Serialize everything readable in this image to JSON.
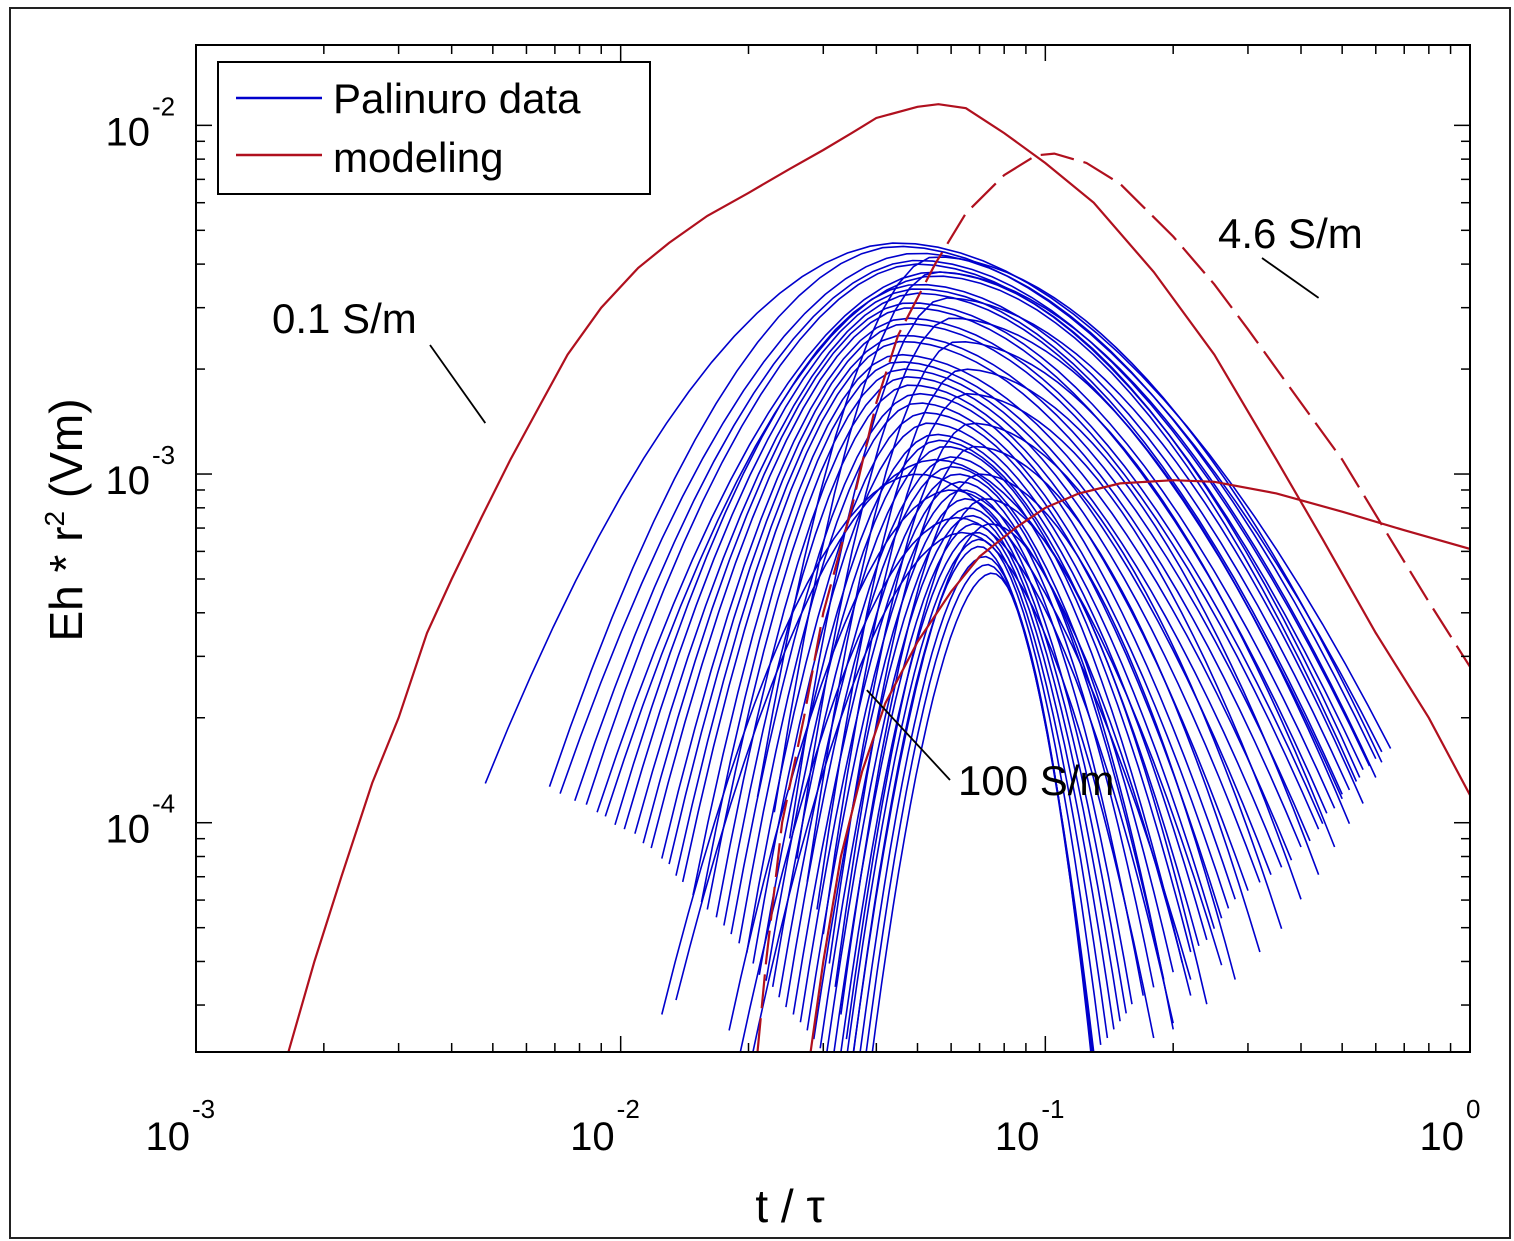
{
  "chart_data": {
    "type": "line",
    "xscale": "log",
    "yscale": "log",
    "xlim": [
      0.001,
      1
    ],
    "ylim": [
      2.2e-05,
      0.017
    ],
    "xlabel": "t / τ",
    "ylabel_parts": {
      "pre": "Eh * r",
      "exp": "2",
      "post": " (Vm)"
    },
    "x_ticks": [
      {
        "value": 0.001,
        "base": "10",
        "exp": "-3"
      },
      {
        "value": 0.01,
        "base": "10",
        "exp": "-2"
      },
      {
        "value": 0.1,
        "base": "10",
        "exp": "-1"
      },
      {
        "value": 1,
        "base": "10",
        "exp": "0"
      }
    ],
    "y_ticks": [
      {
        "value": 0.01,
        "base": "10",
        "exp": "-2"
      },
      {
        "value": 0.001,
        "base": "10",
        "exp": "-3"
      },
      {
        "value": 0.0001,
        "base": "10",
        "exp": "-4"
      }
    ],
    "legend": {
      "placement": "top-left",
      "entries": [
        {
          "label": "Palinuro data",
          "color": "#0000cc"
        },
        {
          "label": "modeling",
          "color": "#b0101e"
        }
      ]
    },
    "model_series": [
      {
        "name": "0.1 S/m",
        "style": "solid",
        "color": "#b0101e",
        "points": [
          [
            0.00165,
            2.2e-05
          ],
          [
            0.0019,
            4e-05
          ],
          [
            0.0022,
            7e-05
          ],
          [
            0.0026,
            0.00013
          ],
          [
            0.003,
            0.0002
          ],
          [
            0.0035,
            0.00035
          ],
          [
            0.004,
            0.0005
          ],
          [
            0.0047,
            0.00075
          ],
          [
            0.0055,
            0.0011
          ],
          [
            0.0065,
            0.0016
          ],
          [
            0.0075,
            0.0022
          ],
          [
            0.009,
            0.003
          ],
          [
            0.011,
            0.0039
          ],
          [
            0.013,
            0.0046
          ],
          [
            0.016,
            0.0055
          ],
          [
            0.02,
            0.0064
          ],
          [
            0.025,
            0.0075
          ],
          [
            0.03,
            0.0085
          ],
          [
            0.035,
            0.0095
          ],
          [
            0.04,
            0.0105
          ],
          [
            0.05,
            0.0113
          ],
          [
            0.056,
            0.0115
          ],
          [
            0.065,
            0.0112
          ],
          [
            0.08,
            0.0095
          ],
          [
            0.1,
            0.0078
          ],
          [
            0.13,
            0.006
          ],
          [
            0.18,
            0.0038
          ],
          [
            0.25,
            0.0022
          ],
          [
            0.35,
            0.0011
          ],
          [
            0.45,
            0.00065
          ],
          [
            0.6,
            0.00035
          ],
          [
            0.8,
            0.0002
          ],
          [
            1.0,
            0.00012
          ]
        ]
      },
      {
        "name": "4.6 S/m",
        "style": "dashed",
        "color": "#b0101e",
        "points": [
          [
            0.021,
            2.2e-05
          ],
          [
            0.022,
            4e-05
          ],
          [
            0.024,
            0.0001
          ],
          [
            0.027,
            0.0002
          ],
          [
            0.03,
            0.0004
          ],
          [
            0.035,
            0.0008
          ],
          [
            0.04,
            0.0016
          ],
          [
            0.045,
            0.0025
          ],
          [
            0.055,
            0.004
          ],
          [
            0.065,
            0.0056
          ],
          [
            0.08,
            0.0072
          ],
          [
            0.095,
            0.0082
          ],
          [
            0.105,
            0.0083
          ],
          [
            0.125,
            0.0078
          ],
          [
            0.15,
            0.0068
          ],
          [
            0.2,
            0.0048
          ],
          [
            0.25,
            0.0035
          ],
          [
            0.3,
            0.0026
          ],
          [
            0.4,
            0.0016
          ],
          [
            0.5,
            0.0011
          ],
          [
            0.65,
            0.00065
          ],
          [
            0.8,
            0.00043
          ],
          [
            1.0,
            0.00028
          ]
        ]
      },
      {
        "name": "100 S/m",
        "style": "solid",
        "color": "#b0101e",
        "points": [
          [
            0.028,
            2.2e-05
          ],
          [
            0.03,
            4e-05
          ],
          [
            0.033,
            8e-05
          ],
          [
            0.037,
            0.00014
          ],
          [
            0.042,
            0.00022
          ],
          [
            0.05,
            0.00033
          ],
          [
            0.06,
            0.00046
          ],
          [
            0.07,
            0.00058
          ],
          [
            0.085,
            0.0007
          ],
          [
            0.1,
            0.0008
          ],
          [
            0.12,
            0.00088
          ],
          [
            0.15,
            0.00094
          ],
          [
            0.2,
            0.00096
          ],
          [
            0.25,
            0.00095
          ],
          [
            0.35,
            0.00088
          ],
          [
            0.5,
            0.00078
          ],
          [
            0.7,
            0.00069
          ],
          [
            1.0,
            0.00061
          ]
        ]
      }
    ],
    "annotations": [
      {
        "text": "0.1 S/m",
        "target": [
          0.0048,
          0.0014
        ]
      },
      {
        "text": "4.6 S/m",
        "target": [
          0.44,
          0.0032
        ]
      },
      {
        "text": "100 S/m",
        "target": [
          0.038,
          0.00024
        ]
      }
    ],
    "palinuro_data": {
      "name": "Palinuro data",
      "color": "#0000cc",
      "note_values": "individual field curves, each defined by start time, peak time, peak amplitude and end time",
      "curves": [
        [
          0.0048,
          0.045,
          0.0046,
          0.65
        ],
        [
          0.0068,
          0.045,
          0.0045,
          0.62
        ],
        [
          0.0072,
          0.05,
          0.0043,
          0.6
        ],
        [
          0.0078,
          0.05,
          0.0041,
          0.58
        ],
        [
          0.0083,
          0.05,
          0.004,
          0.56
        ],
        [
          0.0088,
          0.055,
          0.0038,
          0.55
        ],
        [
          0.0092,
          0.055,
          0.0037,
          0.54
        ],
        [
          0.0097,
          0.05,
          0.0035,
          0.52
        ],
        [
          0.0102,
          0.05,
          0.0034,
          0.5
        ],
        [
          0.0108,
          0.05,
          0.0033,
          0.5
        ],
        [
          0.0113,
          0.048,
          0.0031,
          0.48
        ],
        [
          0.0118,
          0.048,
          0.003,
          0.46
        ],
        [
          0.0125,
          0.047,
          0.0028,
          0.45
        ],
        [
          0.013,
          0.047,
          0.0027,
          0.44
        ],
        [
          0.0135,
          0.046,
          0.0025,
          0.42
        ],
        [
          0.014,
          0.046,
          0.0024,
          0.4
        ],
        [
          0.0148,
          0.045,
          0.0022,
          0.38
        ],
        [
          0.0155,
          0.045,
          0.0021,
          0.36
        ],
        [
          0.016,
          0.046,
          0.002,
          0.34
        ],
        [
          0.0168,
          0.047,
          0.0019,
          0.32
        ],
        [
          0.0175,
          0.048,
          0.0018,
          0.3
        ],
        [
          0.0182,
          0.05,
          0.0017,
          0.28
        ],
        [
          0.019,
          0.05,
          0.0016,
          0.27
        ],
        [
          0.0198,
          0.052,
          0.0015,
          0.26
        ],
        [
          0.0205,
          0.053,
          0.0014,
          0.25
        ],
        [
          0.0212,
          0.055,
          0.0013,
          0.24
        ],
        [
          0.022,
          0.056,
          0.00125,
          0.23
        ],
        [
          0.0228,
          0.058,
          0.0012,
          0.22
        ],
        [
          0.0236,
          0.06,
          0.00112,
          0.21
        ],
        [
          0.0245,
          0.06,
          0.00105,
          0.2
        ],
        [
          0.0255,
          0.062,
          0.001,
          0.19
        ],
        [
          0.0265,
          0.063,
          0.00095,
          0.18
        ],
        [
          0.0275,
          0.064,
          0.0009,
          0.17
        ],
        [
          0.0285,
          0.065,
          0.00085,
          0.16
        ],
        [
          0.0295,
          0.066,
          0.0008,
          0.155
        ],
        [
          0.0305,
          0.067,
          0.00076,
          0.15
        ],
        [
          0.0315,
          0.068,
          0.00072,
          0.145
        ],
        [
          0.0325,
          0.069,
          0.00068,
          0.14
        ],
        [
          0.0335,
          0.07,
          0.00065,
          0.135
        ],
        [
          0.0345,
          0.07,
          0.00062,
          0.13
        ],
        [
          0.0355,
          0.072,
          0.00058,
          0.13
        ],
        [
          0.0365,
          0.073,
          0.00055,
          0.13
        ],
        [
          0.0375,
          0.075,
          0.00052,
          0.13
        ],
        [
          0.021,
          0.055,
          0.0042,
          0.62
        ],
        [
          0.023,
          0.055,
          0.0038,
          0.6
        ],
        [
          0.025,
          0.058,
          0.0032,
          0.56
        ],
        [
          0.026,
          0.06,
          0.0028,
          0.52
        ],
        [
          0.0275,
          0.062,
          0.0024,
          0.48
        ],
        [
          0.029,
          0.064,
          0.002,
          0.44
        ],
        [
          0.03,
          0.065,
          0.0017,
          0.4
        ],
        [
          0.031,
          0.067,
          0.0014,
          0.36
        ],
        [
          0.032,
          0.068,
          0.0012,
          0.32
        ],
        [
          0.033,
          0.07,
          0.001,
          0.28
        ],
        [
          0.034,
          0.072,
          0.00085,
          0.24
        ],
        [
          0.035,
          0.074,
          0.00072,
          0.2
        ],
        [
          0.018,
          0.06,
          0.0009,
          0.22
        ],
        [
          0.019,
          0.062,
          0.00075,
          0.2
        ],
        [
          0.02,
          0.064,
          0.00068,
          0.18
        ],
        [
          0.0125,
          0.05,
          0.001,
          0.22
        ],
        [
          0.0135,
          0.055,
          0.0011,
          0.26
        ]
      ]
    }
  }
}
